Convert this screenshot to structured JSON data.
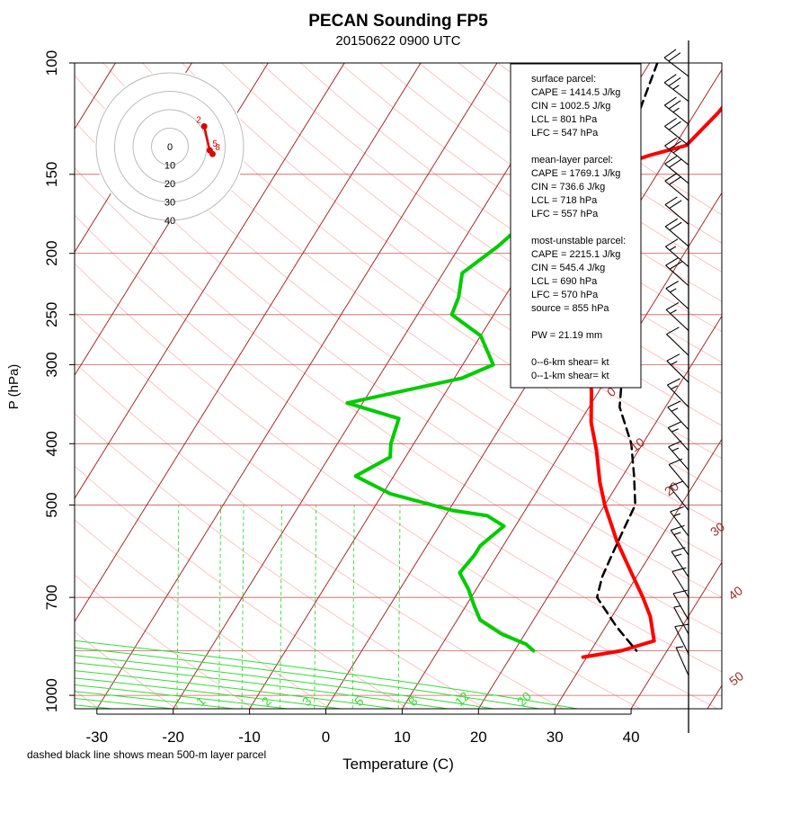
{
  "chart_data": {
    "type": "line",
    "title": "PECAN Sounding FP5",
    "subtitle": "20150622 0900 UTC",
    "xlabel": "Temperature (C)",
    "ylabel": "P (hPa)",
    "footnote": "dashed black line shows mean 500-m layer parcel",
    "xlim": [
      -33,
      43
    ],
    "ylim": [
      1050,
      100
    ],
    "y_scale": "log",
    "x_ticks": [
      -30,
      -20,
      -10,
      0,
      10,
      20,
      30,
      40
    ],
    "y_ticks": [
      100,
      150,
      200,
      250,
      300,
      400,
      500,
      700,
      1000
    ],
    "colors": {
      "temperature": "#ff0000",
      "dewpoint": "#00cc00",
      "parcel": "#000000",
      "isotherm": "#a52a2a",
      "isobar": "#cd5c5c",
      "dry_adiabat": "#ffb6b6",
      "moist_adiabat": "#33dd33",
      "mixing_ratio": "#33dd33",
      "hodograph": "#e00000"
    },
    "series": [
      {
        "points": [
          [
            6.0,
            100
          ],
          [
            3.6,
            110
          ],
          [
            3.0,
            120
          ],
          [
            1.5,
            135
          ],
          [
            -2.5,
            140
          ],
          [
            -5.5,
            145
          ],
          [
            -5.2,
            155
          ],
          [
            -4.5,
            165
          ],
          [
            -4.8,
            175
          ],
          [
            -3.0,
            195
          ],
          [
            -1.0,
            215
          ],
          [
            1.0,
            240
          ],
          [
            3.5,
            270
          ],
          [
            6.5,
            300
          ],
          [
            9.0,
            330
          ],
          [
            11.5,
            370
          ],
          [
            14.5,
            410
          ],
          [
            17.5,
            460
          ],
          [
            20.0,
            500
          ],
          [
            24.5,
            570
          ],
          [
            29.0,
            640
          ],
          [
            32.5,
            700
          ],
          [
            35.0,
            750
          ],
          [
            37.5,
            820
          ],
          [
            34.0,
            850
          ],
          [
            29.5,
            870
          ]
        ]
      },
      {
        "points": [
          [
            -12.0,
            100
          ],
          [
            -12.5,
            110
          ],
          [
            -11.5,
            125
          ],
          [
            -10.0,
            140
          ],
          [
            -12.0,
            155
          ],
          [
            -13.0,
            175
          ],
          [
            -15.0,
            195
          ],
          [
            -17.5,
            215
          ],
          [
            -16.0,
            235
          ],
          [
            -15.5,
            250
          ],
          [
            -10.0,
            270
          ],
          [
            -6.0,
            300
          ],
          [
            -9.0,
            315
          ],
          [
            -22.0,
            345
          ],
          [
            -14.0,
            365
          ],
          [
            -13.0,
            400
          ],
          [
            -12.0,
            420
          ],
          [
            -15.0,
            450
          ],
          [
            -9.0,
            480
          ],
          [
            0.5,
            510
          ],
          [
            5.5,
            520
          ],
          [
            8.5,
            540
          ],
          [
            7.0,
            580
          ],
          [
            7.0,
            600
          ],
          [
            6.5,
            640
          ],
          [
            9.0,
            680
          ],
          [
            11.0,
            720
          ],
          [
            13.0,
            760
          ],
          [
            17.0,
            800
          ],
          [
            21.0,
            830
          ],
          [
            22.5,
            850
          ]
        ]
      },
      {
        "points": [
          [
            -9.0,
            100
          ],
          [
            -6.0,
            140
          ],
          [
            -4.0,
            170
          ],
          [
            -0.5,
            200
          ],
          [
            6.5,
            250
          ],
          [
            11.0,
            300
          ],
          [
            14.0,
            350
          ],
          [
            18.5,
            400
          ],
          [
            21.5,
            450
          ],
          [
            24.0,
            500
          ],
          [
            24.5,
            550
          ],
          [
            25.0,
            600
          ],
          [
            25.5,
            650
          ],
          [
            26.5,
            700
          ],
          [
            31.5,
            780
          ],
          [
            36.0,
            850
          ]
        ]
      }
    ],
    "isotherm_labels": [
      "0",
      "10",
      "20",
      "30",
      "40",
      "50"
    ],
    "mixing_ratio_labels": [
      "1",
      "2",
      "3",
      "5",
      "8",
      "12",
      "20"
    ],
    "hodograph": {
      "ring_labels": [
        "0",
        "10",
        "20",
        "30",
        "40"
      ],
      "points": [
        {
          "label": "2",
          "u": 4,
          "v": 11
        },
        {
          "label": "5",
          "u": 7,
          "v": -2
        },
        {
          "label": "8",
          "u": 8.5,
          "v": -4
        }
      ]
    },
    "indices_box": {
      "lines": [
        "surface parcel:",
        "CAPE = 1414.5 J/kg",
        "CIN = 1002.5 J/kg",
        "LCL = 801 hPa",
        "LFC = 547 hPa",
        "",
        "mean-layer parcel:",
        "CAPE = 1769.1 J/kg",
        "CIN = 736.6 J/kg",
        "LCL = 718 hPa",
        "LFC = 557 hPa",
        "",
        "most-unstable parcel:",
        "CAPE = 2215.1 J/kg",
        "CIN = 545.4 J/kg",
        "LCL = 690 hPa",
        "LFC = 570 hPa",
        "source = 855 hPa",
        "",
        "PW = 21.19 mm",
        "",
        "0--6-km shear=  kt",
        "0--1-km shear=  kt"
      ]
    },
    "wind_barbs": [
      {
        "p": 105,
        "speed": 20
      },
      {
        "p": 115,
        "speed": 25
      },
      {
        "p": 125,
        "speed": 25
      },
      {
        "p": 135,
        "speed": 20
      },
      {
        "p": 145,
        "speed": 25
      },
      {
        "p": 155,
        "speed": 20
      },
      {
        "p": 165,
        "speed": 20
      },
      {
        "p": 180,
        "speed": 20
      },
      {
        "p": 195,
        "speed": 20
      },
      {
        "p": 210,
        "speed": 15
      },
      {
        "p": 225,
        "speed": 20
      },
      {
        "p": 245,
        "speed": 15
      },
      {
        "p": 265,
        "speed": 15
      },
      {
        "p": 290,
        "speed": 10
      },
      {
        "p": 320,
        "speed": 15
      },
      {
        "p": 350,
        "speed": 15
      },
      {
        "p": 380,
        "speed": 15
      },
      {
        "p": 410,
        "speed": 15
      },
      {
        "p": 440,
        "speed": 15
      },
      {
        "p": 470,
        "speed": 10
      },
      {
        "p": 510,
        "speed": 10
      },
      {
        "p": 560,
        "speed": 15
      },
      {
        "p": 600,
        "speed": 15
      },
      {
        "p": 650,
        "speed": 15
      },
      {
        "p": 700,
        "speed": 10
      },
      {
        "p": 760,
        "speed": 10
      },
      {
        "p": 800,
        "speed": 5
      },
      {
        "p": 860,
        "speed": 10
      },
      {
        "p": 930,
        "speed": 5
      }
    ]
  }
}
